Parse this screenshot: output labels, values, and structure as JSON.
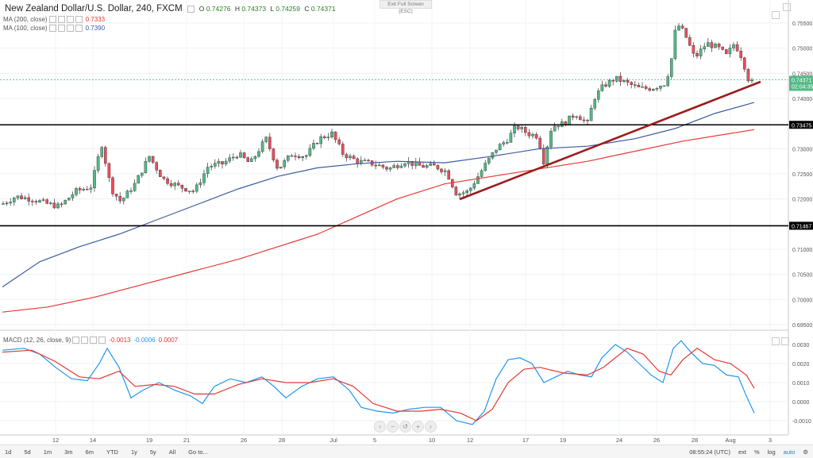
{
  "header": {
    "title": "New Zealand Dollar/U.S. Dollar, 240, FXCM",
    "ohlc": [
      {
        "label": "O",
        "value": "0.74276"
      },
      {
        "label": "H",
        "value": "0.74373"
      },
      {
        "label": "L",
        "value": "0.74259"
      },
      {
        "label": "C",
        "value": "0.74371"
      }
    ],
    "exit_fullscreen": "Exit Full Screen (ESC)"
  },
  "indicators": [
    {
      "name": "MA (200, close)",
      "value": "0.7333",
      "color": "#e53935"
    },
    {
      "name": "MA (100, close)",
      "value": "0.7390",
      "color": "#3a5ba0"
    }
  ],
  "macd_header": {
    "name": "MACD (12, 26, close, 9)",
    "values": [
      {
        "v": "-0.0013",
        "color": "#e53935"
      },
      {
        "v": "-0.0006",
        "color": "#2196f3"
      },
      {
        "v": "0.0007",
        "color": "#e53935"
      }
    ]
  },
  "price_axis": {
    "ticks": [
      "0.75500",
      "0.75000",
      "0.74500",
      "0.74000",
      "0.73000",
      "0.72500",
      "0.72000",
      "0.71000",
      "0.70500",
      "0.70000",
      "0.69500"
    ],
    "current_price": "0.74371",
    "countdown": "02:04:35",
    "level_labels": [
      "0.73475",
      "0.71467"
    ]
  },
  "macd_axis": {
    "ticks": [
      "0.0030",
      "0.0020",
      "0.0010",
      "0.0000",
      "-0.0010"
    ]
  },
  "time_axis": {
    "ticks": [
      "12",
      "14",
      "19",
      "21",
      "26",
      "28",
      "Jul",
      "5",
      "10",
      "12",
      "17",
      "19",
      "24",
      "26",
      "28",
      "Aug",
      "3"
    ]
  },
  "bottom_bar": {
    "timeframes": [
      "1d",
      "5d",
      "1m",
      "3m",
      "6m",
      "YTD",
      "1y",
      "5y",
      "All",
      "Go to..."
    ],
    "clock": "08:55:24 (UTC)",
    "toggles": [
      "ext",
      "%",
      "log",
      "auto"
    ]
  },
  "colors": {
    "up_candle": "#53b987",
    "down_candle": "#eb4d5c",
    "trendline": "#9b1c1c",
    "level_line": "#000000",
    "ma200": "#e53935",
    "ma100": "#3a5ba0",
    "macd_line": "#2196f3",
    "signal_line": "#e53935"
  }
}
